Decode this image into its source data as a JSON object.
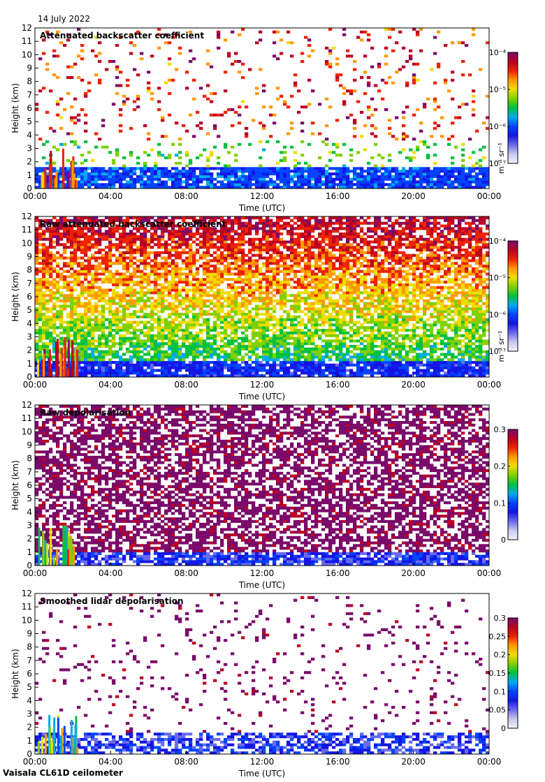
{
  "date": "14 July 2022",
  "footer": "Vaisala CL61D ceilometer",
  "chart_data": [
    {
      "type": "heatmap",
      "title": "Attenuated backscatter coefficient",
      "xlabel": "Time (UTC)",
      "ylabel": "Height (km)",
      "x_ticks": [
        "00:00",
        "04:00",
        "08:00",
        "12:00",
        "16:00",
        "20:00",
        "00:00"
      ],
      "xlim_hours": [
        0,
        24
      ],
      "y_ticks": [
        0,
        1,
        2,
        3,
        4,
        5,
        6,
        7,
        8,
        9,
        10,
        11,
        12
      ],
      "ylim": [
        0,
        12
      ],
      "colorbar": {
        "scale": "log",
        "ticks": [
          "10⁻⁷",
          "10⁻⁶",
          "10⁻⁵",
          "10⁻⁴"
        ],
        "label": "m⁻¹ sr⁻¹",
        "range": [
          1e-07,
          0.0001
        ]
      },
      "grid": false
    },
    {
      "type": "heatmap",
      "title": "Raw attenuated backscatter coefficient",
      "xlabel": "Time (UTC)",
      "ylabel": "Height (km)",
      "x_ticks": [
        "00:00",
        "04:00",
        "08:00",
        "12:00",
        "16:00",
        "20:00",
        "00:00"
      ],
      "xlim_hours": [
        0,
        24
      ],
      "y_ticks": [
        0,
        1,
        2,
        3,
        4,
        5,
        6,
        7,
        8,
        9,
        10,
        11,
        12
      ],
      "ylim": [
        0,
        12
      ],
      "colorbar": {
        "scale": "log",
        "ticks": [
          "10⁻⁷",
          "10⁻⁶",
          "10⁻⁵",
          "10⁻⁴"
        ],
        "label": "m⁻¹ sr⁻¹",
        "range": [
          1e-07,
          0.0001
        ]
      },
      "grid": false
    },
    {
      "type": "heatmap",
      "title": "Raw depolarisation",
      "xlabel": "Time (UTC)",
      "ylabel": "Height (km)",
      "x_ticks": [
        "00:00",
        "04:00",
        "08:00",
        "12:00",
        "16:00",
        "20:00",
        "00:00"
      ],
      "xlim_hours": [
        0,
        24
      ],
      "y_ticks": [
        0,
        1,
        2,
        3,
        4,
        5,
        6,
        7,
        8,
        9,
        10,
        11,
        12
      ],
      "ylim": [
        0,
        12
      ],
      "colorbar": {
        "scale": "linear",
        "ticks": [
          "0",
          "0.1",
          "0.2",
          "0.3"
        ],
        "label": "",
        "range": [
          0,
          0.3
        ]
      },
      "grid": false
    },
    {
      "type": "heatmap",
      "title": "Smoothed lidar depolarisation",
      "xlabel": "Time (UTC)",
      "ylabel": "Height (km)",
      "x_ticks": [
        "00:00",
        "04:00",
        "08:00",
        "12:00",
        "16:00",
        "20:00",
        "00:00"
      ],
      "xlim_hours": [
        0,
        24
      ],
      "y_ticks": [
        0,
        1,
        2,
        3,
        4,
        5,
        6,
        7,
        8,
        9,
        10,
        11,
        12
      ],
      "ylim": [
        0,
        12
      ],
      "colorbar": {
        "scale": "linear",
        "ticks": [
          "0",
          "0.05",
          "0.1",
          "0.15",
          "0.2",
          "0.25",
          "0.3"
        ],
        "label": "",
        "range": [
          0,
          0.3
        ]
      },
      "grid": false
    }
  ],
  "colormap": [
    "#f2f2fb",
    "#c8c8f0",
    "#6a6aec",
    "#1515e6",
    "#0044ff",
    "#00aaee",
    "#00c040",
    "#7fd000",
    "#eedd00",
    "#ff9900",
    "#ee2200",
    "#bb0022",
    "#7a0a6a"
  ]
}
